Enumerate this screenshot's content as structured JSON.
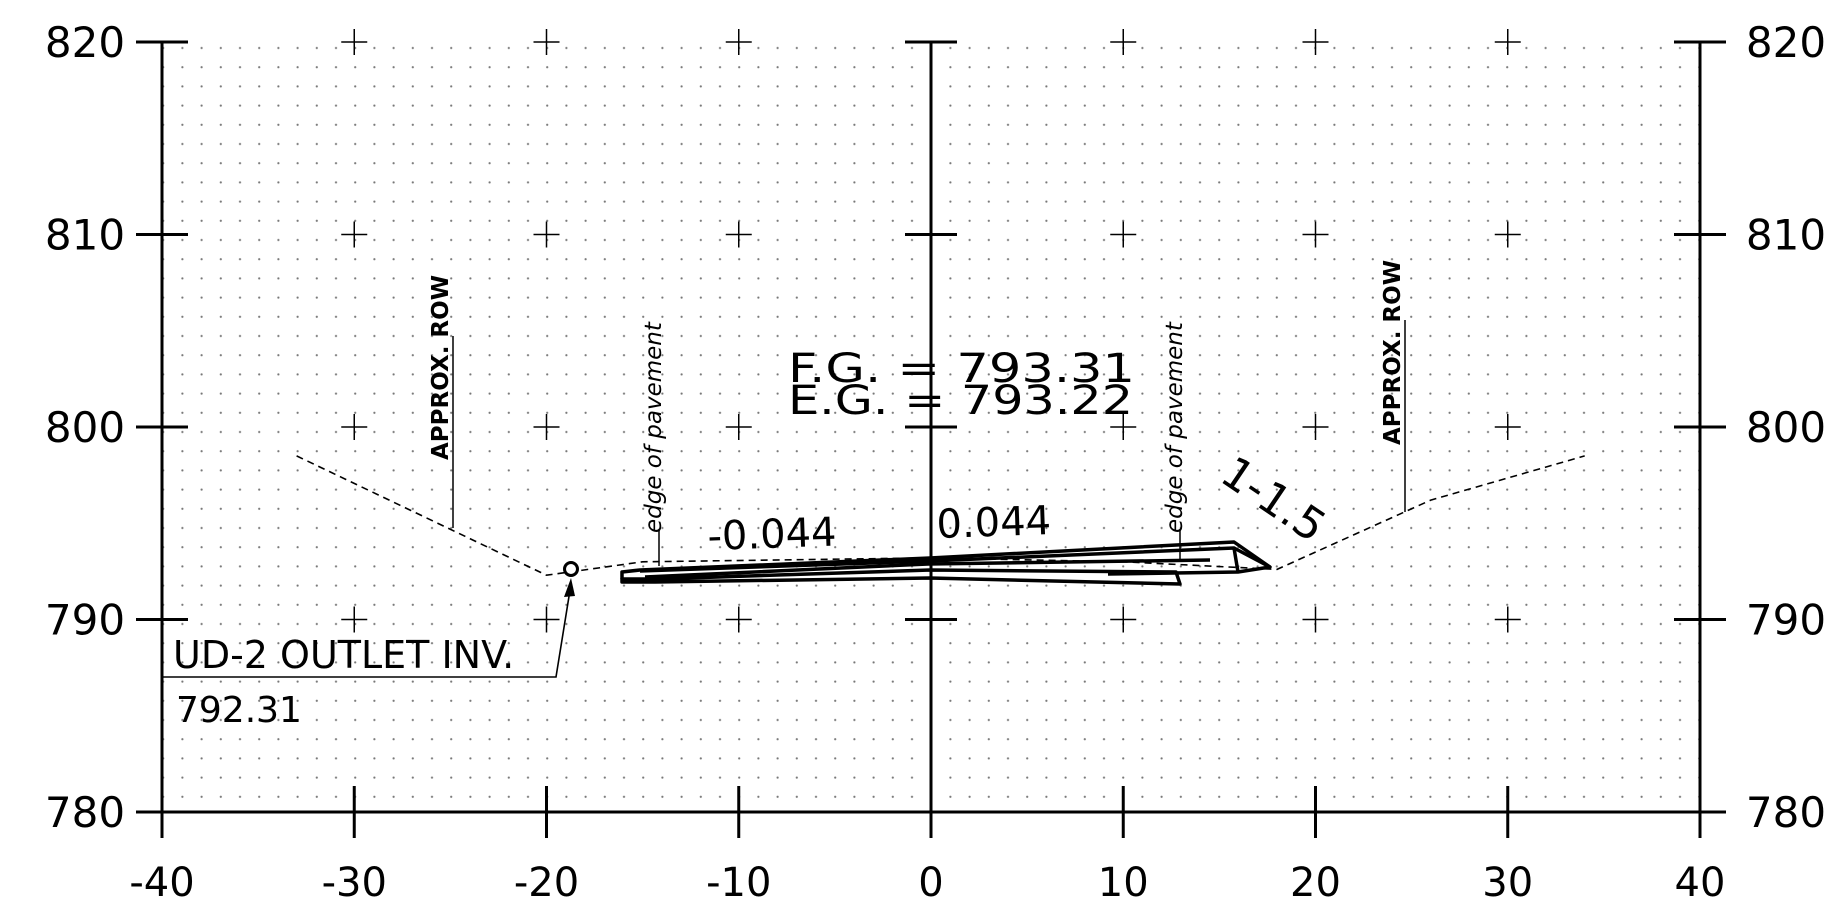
{
  "drawing": {
    "x_ticks": [
      "-40",
      "-30",
      "-20",
      "-10",
      "0",
      "10",
      "20",
      "30",
      "40"
    ],
    "y_ticks": [
      "780",
      "790",
      "800",
      "810",
      "820"
    ],
    "labels": {
      "fg": "F.G. = 793.31",
      "eg": "E.G. = 793.22",
      "slope_left": "-0.044",
      "slope_right": "0.044",
      "side_slope": "1-1.5",
      "approx_row_left": "APPROX. ROW",
      "approx_row_right": "APPROX. ROW",
      "edge_pavement_left": "edge of pavement",
      "edge_pavement_right": "edge of pavement",
      "outlet_label": "UD-2 OUTLET INV.",
      "outlet_elev": "792.31"
    },
    "colors": {
      "ink": "#000000",
      "grid_dot": "#777777",
      "background": "#ffffff"
    }
  },
  "chart_data": {
    "type": "line",
    "title": "",
    "xlabel": "",
    "ylabel": "",
    "xlim": [
      -40,
      40
    ],
    "ylim": [
      780,
      820
    ],
    "x_ticks": [
      -40,
      -30,
      -20,
      -10,
      0,
      10,
      20,
      30,
      40
    ],
    "y_ticks": [
      780,
      790,
      800,
      810,
      820
    ],
    "grid": "dotted",
    "series": [
      {
        "points": [
          [
            -33,
            798.5
          ],
          [
            -20,
            792.3
          ],
          [
            -15,
            793.0
          ],
          [
            0,
            793.2
          ],
          [
            10,
            793.0
          ],
          [
            18,
            792.6
          ],
          [
            26,
            796.2
          ],
          [
            34,
            798.5
          ]
        ]
      },
      {
        "points": [
          [
            -16,
            792.2
          ],
          [
            -15,
            792.5
          ],
          [
            0,
            793.2
          ],
          [
            16,
            793.9
          ],
          [
            17.5,
            792.7
          ]
        ]
      },
      {
        "points": [
          [
            -15,
            792.0
          ],
          [
            0,
            792.5
          ],
          [
            13,
            792.0
          ],
          [
            13,
            791.8
          ]
        ]
      }
    ],
    "annotations": [
      {
        "text": "F.G. = 793.31"
      },
      {
        "text": "E.G. = 793.22"
      },
      {
        "text": "-0.044"
      },
      {
        "text": "0.044"
      },
      {
        "text": "1-1.5"
      },
      {
        "text": "APPROX. ROW",
        "x": -25
      },
      {
        "text": "APPROX. ROW",
        "x": 25
      },
      {
        "text": "edge of pavement",
        "x": -14.3
      },
      {
        "text": "edge of pavement",
        "x": 13
      },
      {
        "text": "UD-2 OUTLET INV.",
        "x": -18.6,
        "y": 792.31
      },
      {
        "text": "792.31"
      }
    ]
  }
}
